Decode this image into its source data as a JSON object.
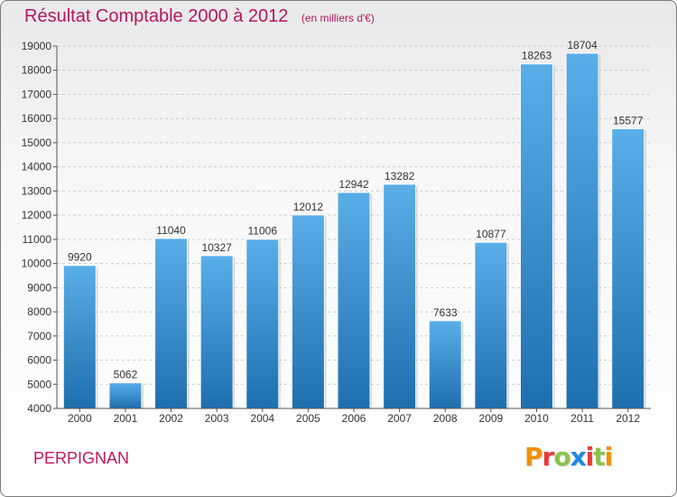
{
  "header": {
    "title": "Résultat Comptable 2000 à 2012",
    "subtitle": "(en milliers d'€)"
  },
  "footer": {
    "city": "PERPIGNAN",
    "logo_text": "Proxiti",
    "logo_colors": [
      "#f29100",
      "#e53935",
      "#8bc34a",
      "#1e88e5",
      "#e53935",
      "#8bc34a",
      "#f29100"
    ]
  },
  "chart_data": {
    "type": "bar",
    "title": "Résultat Comptable 2000 à 2012",
    "categories": [
      "2000",
      "2001",
      "2002",
      "2003",
      "2004",
      "2005",
      "2006",
      "2007",
      "2008",
      "2009",
      "2010",
      "2011",
      "2012"
    ],
    "values": [
      9920,
      5062,
      11040,
      10327,
      11006,
      12012,
      12942,
      13282,
      7633,
      10877,
      18263,
      18704,
      15577
    ],
    "ylim": [
      4000,
      19000
    ],
    "yticks": [
      4000,
      5000,
      6000,
      7000,
      8000,
      9000,
      10000,
      11000,
      12000,
      13000,
      14000,
      15000,
      16000,
      17000,
      18000,
      19000
    ],
    "grid": true,
    "colors": {
      "bar_top": "#5aaee8",
      "bar_bottom": "#1e6fae",
      "grid": "#cccccc"
    }
  }
}
